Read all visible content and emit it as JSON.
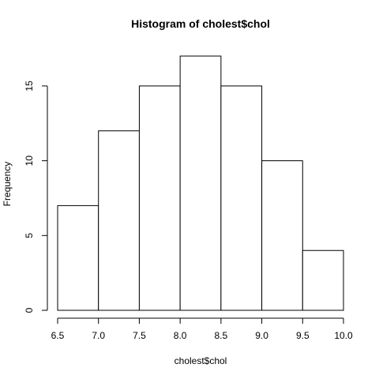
{
  "chart_data": {
    "type": "bar",
    "title": "Histogram of cholest$chol",
    "xlabel": "cholest$chol",
    "ylabel": "Frequency",
    "bins": [
      {
        "start": 6.5,
        "end": 7.0,
        "count": 7
      },
      {
        "start": 7.0,
        "end": 7.5,
        "count": 12
      },
      {
        "start": 7.5,
        "end": 8.0,
        "count": 15
      },
      {
        "start": 8.0,
        "end": 8.5,
        "count": 17
      },
      {
        "start": 8.5,
        "end": 9.0,
        "count": 15
      },
      {
        "start": 9.0,
        "end": 9.5,
        "count": 10
      },
      {
        "start": 9.5,
        "end": 10.0,
        "count": 4
      }
    ],
    "xlim": [
      6.5,
      10.0
    ],
    "ylim": [
      0,
      17
    ],
    "x_ticks": [
      "6.5",
      "7.0",
      "7.5",
      "8.0",
      "8.5",
      "9.0",
      "9.5",
      "10.0"
    ],
    "y_ticks": [
      "0",
      "5",
      "10",
      "15"
    ],
    "grid": false,
    "bar_fill": "#ffffff",
    "bar_stroke": "#000000"
  }
}
